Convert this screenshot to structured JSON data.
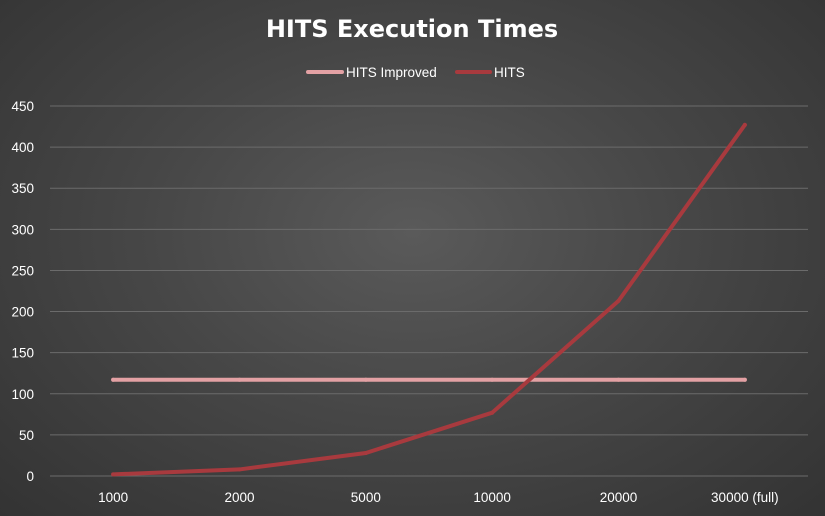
{
  "chart_data": {
    "type": "line",
    "title": "HITS Execution Times",
    "categories": [
      "1000",
      "2000",
      "5000",
      "10000",
      "20000",
      "30000 (full)"
    ],
    "series": [
      {
        "name": "HITS Improved",
        "values": [
          117,
          117,
          117,
          117,
          117,
          117
        ],
        "color": "#e3a1a4"
      },
      {
        "name": "HITS",
        "values": [
          2,
          8,
          28,
          77,
          213,
          427
        ],
        "color": "#a83a3e"
      }
    ],
    "yticks": [
      0,
      50,
      100,
      150,
      200,
      250,
      300,
      350,
      400,
      450
    ],
    "ylim": [
      0,
      450
    ],
    "grid": true,
    "legend": "top"
  }
}
